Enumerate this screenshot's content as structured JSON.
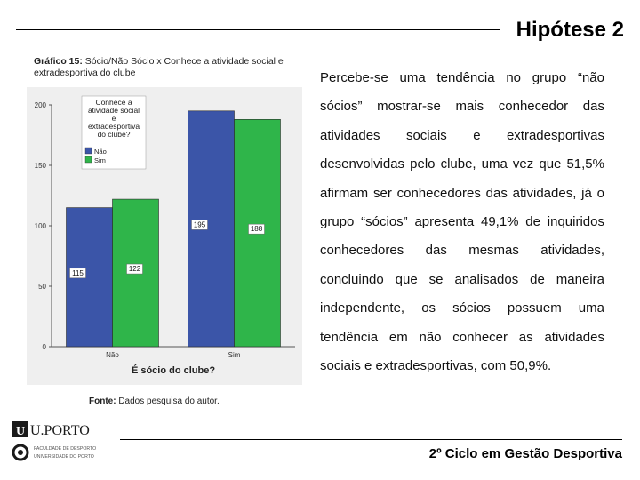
{
  "slide": {
    "title": "Hipótese 2",
    "caption_label": "Gráfico 15:",
    "caption_text": " Sócio/Não Sócio x Conhece a atividade social e extradesportiva do clube",
    "source_label": "Fonte:",
    "source_text": " Dados pesquisa do autor.",
    "body": "Percebe-se uma tendência no grupo “não sócios” mostrar-se mais conhecedor das atividades sociais e extradesportivas desenvolvidas pelo clube, uma vez que 51,5% afirmam ser conhecedores das atividades, já o grupo “sócios” apresenta 49,1% de inquiridos conhecedores das mesmas atividades, concluindo que se analisados de maneira independente, os sócios possuem uma tendência em não conhecer as atividades sociais e extradesportivas, com 50,9%.",
    "footer": "2º Ciclo em Gestão Desportiva"
  },
  "logo": {
    "brand": "U.PORTO",
    "subtitle_line1": "FACULDADE DE DESPORTO",
    "subtitle_line2": "UNIVERSIDADE DO PORTO"
  },
  "chart_data": {
    "type": "bar",
    "xlabel": "É sócio do clube?",
    "categories": [
      "Não",
      "Sim"
    ],
    "ylim": [
      0,
      200
    ],
    "yticks": [
      "0",
      "50",
      "100",
      "150",
      "200"
    ],
    "legend_title": "Conhece a atividade social e extradesportiva do clube?",
    "legend_title_lines": [
      "Conhece a",
      "atividade social",
      "e",
      "extradesportiva",
      "do clube?"
    ],
    "series": [
      {
        "name": "Não",
        "color": "#3b55a8",
        "values": [
          115,
          195
        ]
      },
      {
        "name": "Sim",
        "color": "#2fb54a",
        "values": [
          122,
          188
        ]
      }
    ]
  }
}
